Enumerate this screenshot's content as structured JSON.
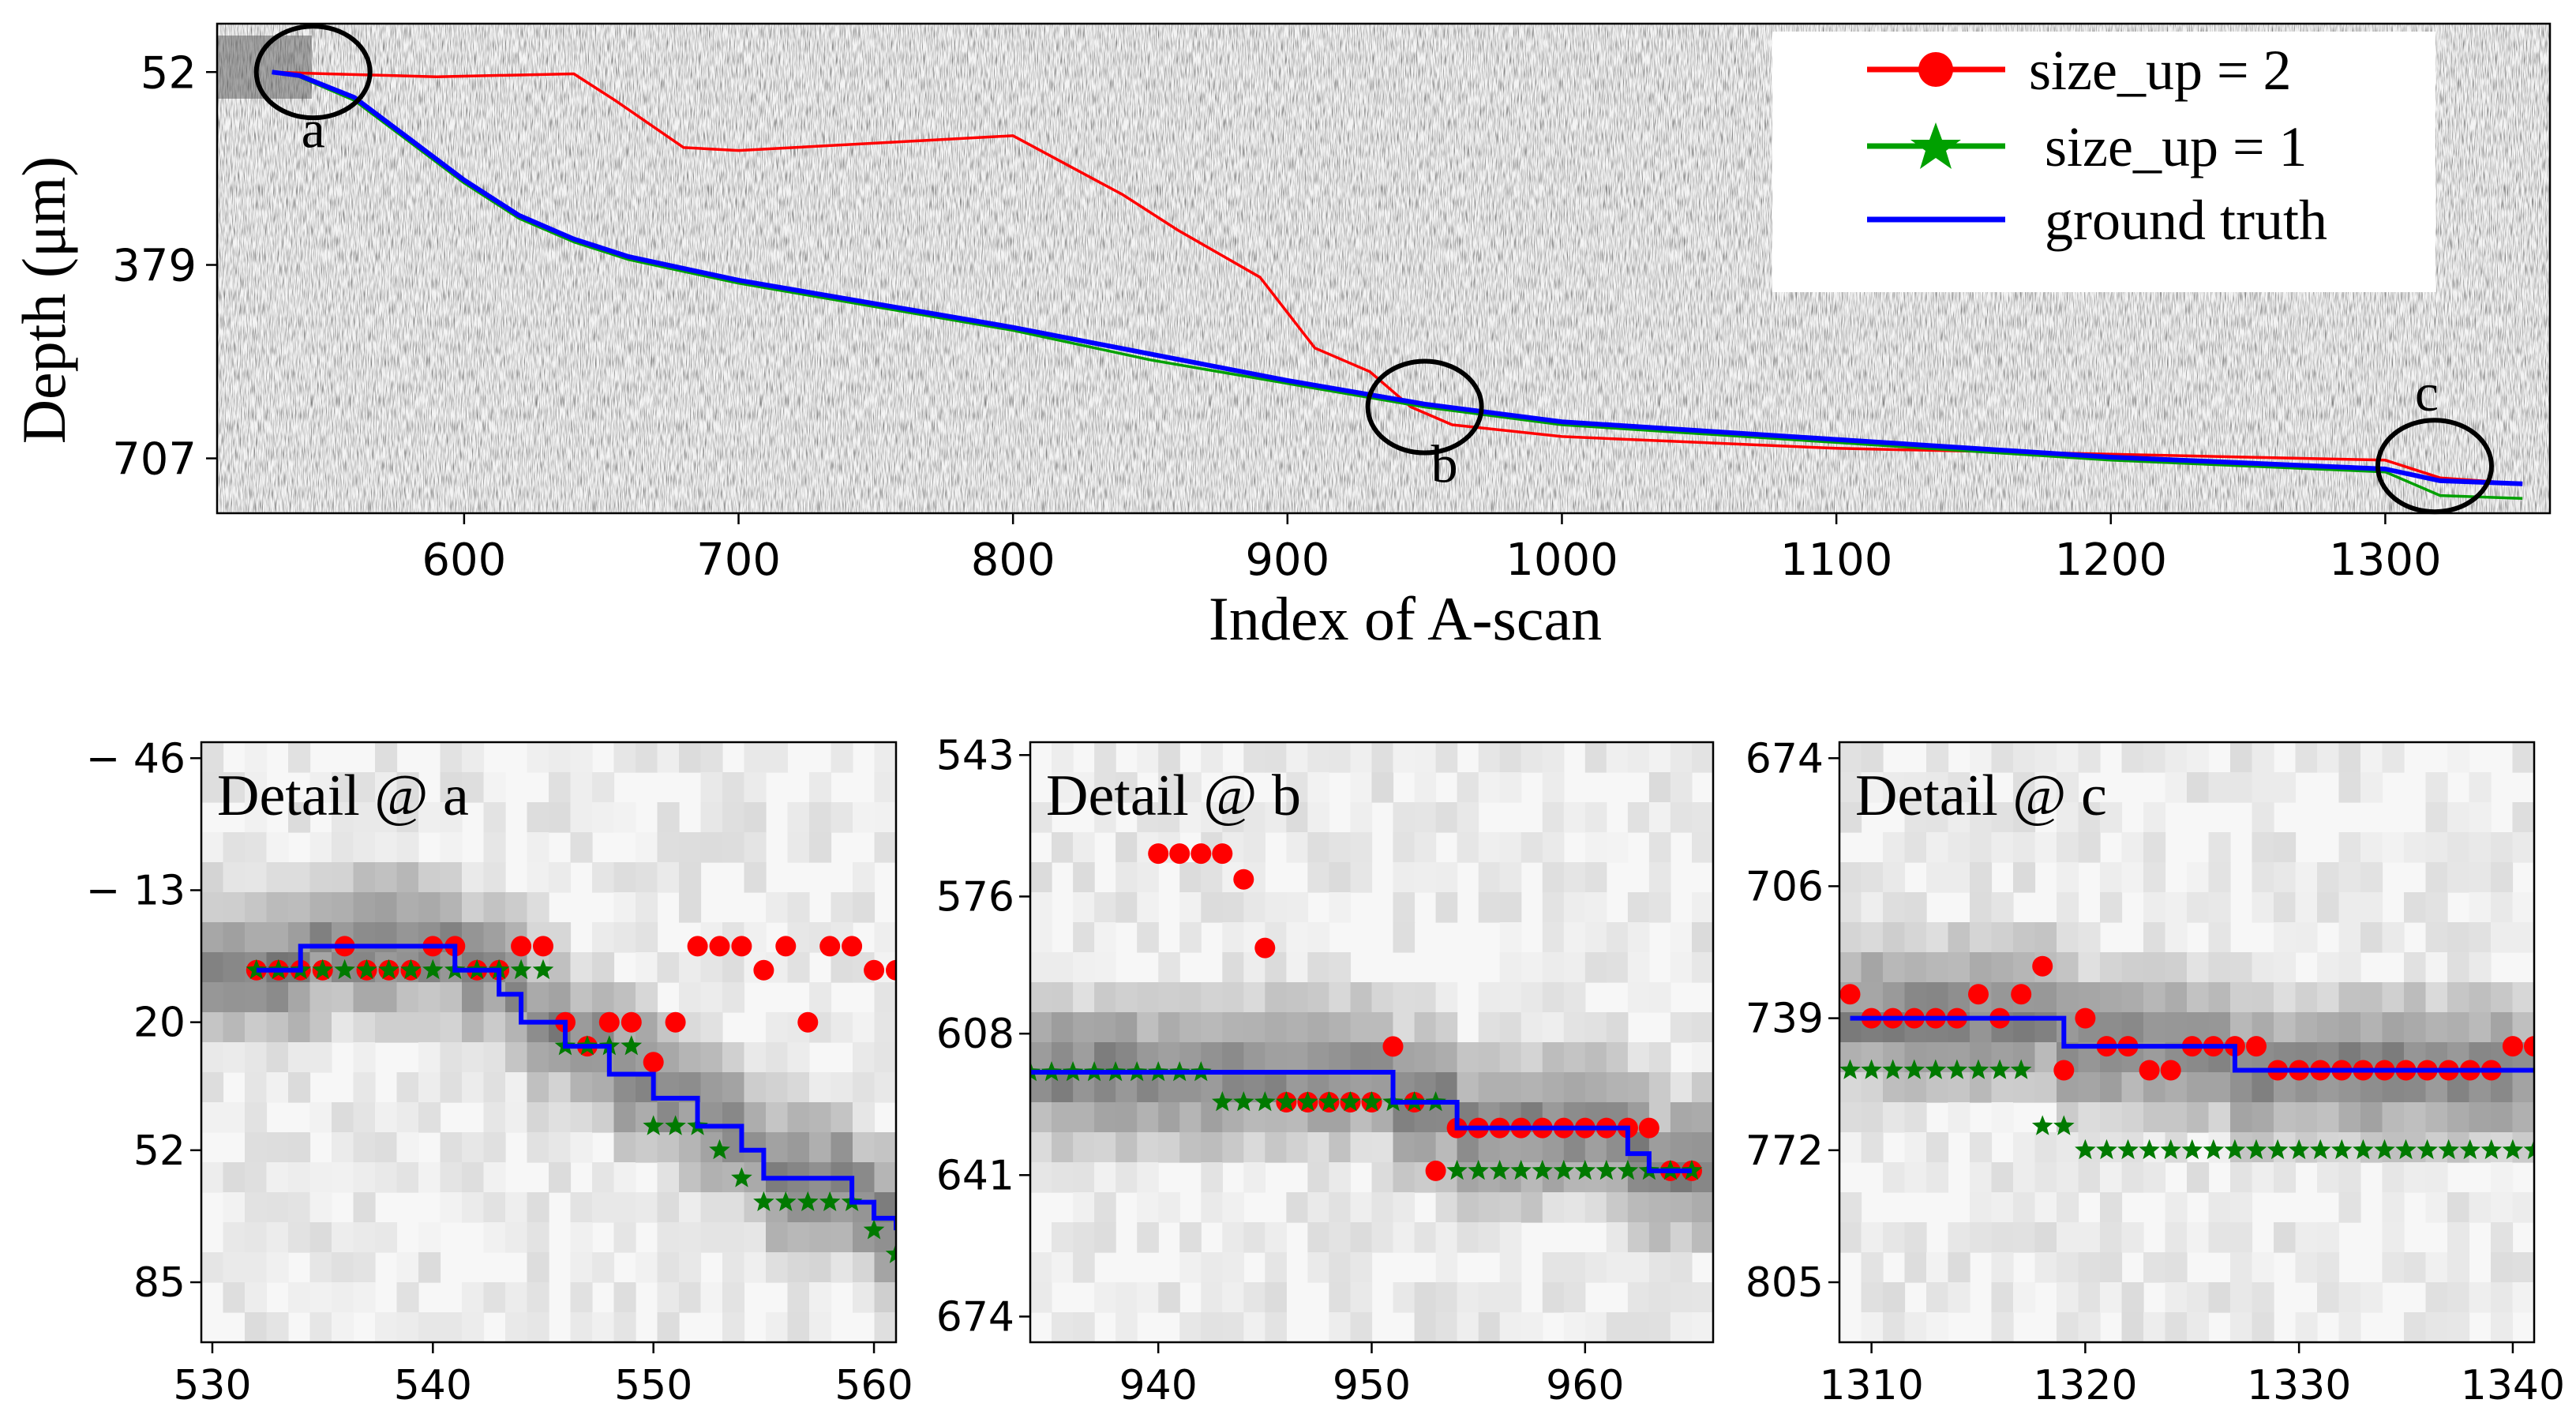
{
  "chart_data": [
    {
      "id": "main",
      "type": "line",
      "title": "",
      "xlabel": "Index of A-scan",
      "ylabel": "Depth (μm)",
      "xlim": [
        510,
        1360
      ],
      "ylim_inverted": [
        -30,
        800
      ],
      "xticks": [
        600,
        700,
        800,
        900,
        1000,
        1100,
        1200,
        1300
      ],
      "yticks": [
        52,
        379,
        707
      ],
      "legend_position": "top-right",
      "series": [
        {
          "name": "size_up = 2",
          "color": "#ff0000",
          "marker": "circle",
          "x": [
            530,
            550,
            590,
            640,
            655,
            680,
            700,
            760,
            800,
            840,
            860,
            890,
            910,
            930,
            945,
            960,
            1000,
            1100,
            1200,
            1300,
            1320,
            1350
          ],
          "y": [
            52,
            55,
            60,
            55,
            100,
            180,
            185,
            170,
            160,
            260,
            320,
            400,
            520,
            560,
            620,
            650,
            670,
            690,
            700,
            710,
            740,
            750
          ]
        },
        {
          "name": "size_up = 1",
          "color": "#00a000",
          "marker": "star",
          "x": [
            530,
            540,
            560,
            580,
            600,
            620,
            640,
            660,
            700,
            750,
            800,
            850,
            900,
            950,
            1000,
            1100,
            1200,
            1300,
            1320,
            1350
          ],
          "y": [
            52,
            60,
            100,
            170,
            240,
            300,
            340,
            370,
            410,
            450,
            490,
            540,
            580,
            620,
            650,
            680,
            710,
            730,
            770,
            775
          ]
        },
        {
          "name": "ground truth",
          "color": "#0000ff",
          "marker": "none",
          "x": [
            530,
            540,
            560,
            580,
            600,
            620,
            640,
            660,
            700,
            750,
            800,
            850,
            900,
            950,
            1000,
            1100,
            1200,
            1300,
            1320,
            1350
          ],
          "y": [
            52,
            58,
            95,
            165,
            235,
            295,
            335,
            365,
            405,
            445,
            485,
            530,
            575,
            615,
            645,
            675,
            705,
            725,
            745,
            750
          ]
        }
      ]
    },
    {
      "id": "detail_a",
      "type": "line",
      "annotation": "Detail @ a",
      "xlim": [
        529.5,
        561
      ],
      "ylim_inverted": [
        -50,
        100
      ],
      "xticks": [
        530,
        540,
        550,
        560
      ],
      "yticks": [
        -46,
        -13,
        20,
        52,
        85
      ],
      "ytick_labels": [
        "− 46",
        "− 13",
        "20",
        "52",
        "85"
      ],
      "series": [
        {
          "name": "size_up = 2",
          "color": "#ff0000",
          "marker": "circle",
          "x": [
            532,
            533,
            534,
            535,
            536,
            537,
            538,
            539,
            540,
            541,
            542,
            543,
            544,
            545,
            546,
            547,
            548,
            549,
            550,
            551,
            552,
            553,
            554,
            555,
            556,
            557,
            558,
            559,
            560,
            561
          ],
          "y": [
            7,
            7,
            7,
            7,
            1,
            7,
            7,
            7,
            1,
            1,
            7,
            7,
            1,
            1,
            20,
            26,
            20,
            20,
            30,
            20,
            1,
            1,
            1,
            7,
            1,
            20,
            1,
            1,
            7,
            7
          ]
        },
        {
          "name": "size_up = 1",
          "color": "#007a00",
          "marker": "star",
          "x": [
            532,
            533,
            534,
            535,
            536,
            537,
            538,
            539,
            540,
            541,
            542,
            543,
            544,
            545,
            546,
            547,
            548,
            549,
            550,
            551,
            552,
            553,
            554,
            555,
            556,
            557,
            558,
            559,
            560,
            561
          ],
          "y": [
            7,
            7,
            7,
            7,
            7,
            7,
            7,
            7,
            7,
            7,
            7,
            7,
            7,
            7,
            26,
            26,
            26,
            26,
            46,
            46,
            46,
            52,
            59,
            65,
            65,
            65,
            65,
            65,
            72,
            78
          ]
        },
        {
          "name": "ground truth",
          "color": "#0000ff",
          "marker": "none",
          "x": [
            532,
            533,
            534,
            535,
            536,
            537,
            538,
            539,
            540,
            541,
            542,
            543,
            544,
            545,
            546,
            547,
            548,
            549,
            550,
            551,
            552,
            553,
            554,
            555,
            556,
            557,
            558,
            559,
            560,
            561
          ],
          "y": [
            7,
            7,
            1,
            1,
            1,
            1,
            1,
            1,
            1,
            7,
            7,
            13,
            20,
            20,
            26,
            26,
            33,
            33,
            39,
            39,
            46,
            46,
            52,
            59,
            59,
            59,
            59,
            65,
            69,
            72
          ]
        }
      ]
    },
    {
      "id": "detail_b",
      "type": "line",
      "annotation": "Detail @ b",
      "xlim": [
        934,
        966
      ],
      "ylim_inverted": [
        540,
        680
      ],
      "xticks": [
        940,
        950,
        960
      ],
      "yticks": [
        543,
        576,
        608,
        641,
        674
      ],
      "ytick_labels": [
        "543",
        "576",
        "608",
        "641",
        "674"
      ],
      "series": [
        {
          "name": "size_up = 2",
          "color": "#ff0000",
          "marker": "circle",
          "x": [
            940,
            941,
            942,
            943,
            944,
            945,
            946,
            947,
            948,
            949,
            950,
            951,
            952,
            953,
            954,
            955,
            956,
            957,
            958,
            959,
            960,
            961,
            962,
            963,
            964,
            965
          ],
          "y": [
            566,
            566,
            566,
            566,
            572,
            588,
            624,
            624,
            624,
            624,
            624,
            611,
            624,
            640,
            630,
            630,
            630,
            630,
            630,
            630,
            630,
            630,
            630,
            630,
            640,
            640
          ]
        },
        {
          "name": "size_up = 1",
          "color": "#007a00",
          "marker": "star",
          "x": [
            934,
            935,
            936,
            937,
            938,
            939,
            940,
            941,
            942,
            943,
            944,
            945,
            946,
            947,
            948,
            949,
            950,
            951,
            952,
            953,
            954,
            955,
            956,
            957,
            958,
            959,
            960,
            961,
            962,
            963,
            964,
            965
          ],
          "y": [
            617,
            617,
            617,
            617,
            617,
            617,
            617,
            617,
            617,
            624,
            624,
            624,
            624,
            624,
            624,
            624,
            624,
            624,
            624,
            624,
            640,
            640,
            640,
            640,
            640,
            640,
            640,
            640,
            640,
            640,
            640,
            640
          ]
        },
        {
          "name": "ground truth",
          "color": "#0000ff",
          "marker": "none",
          "x": [
            934,
            944,
            946,
            947,
            948,
            949,
            950,
            951,
            952,
            953,
            954,
            955,
            956,
            957,
            958,
            959,
            960,
            961,
            962,
            963,
            964,
            965
          ],
          "y": [
            617,
            617,
            617,
            617,
            617,
            617,
            617,
            624,
            624,
            624,
            630,
            630,
            630,
            630,
            630,
            630,
            630,
            630,
            636,
            640,
            640,
            640
          ]
        }
      ]
    },
    {
      "id": "detail_c",
      "type": "line",
      "annotation": "Detail @ c",
      "xlim": [
        1308.5,
        1341
      ],
      "ylim_inverted": [
        670,
        820
      ],
      "xticks": [
        1310,
        1320,
        1330,
        1340
      ],
      "yticks": [
        674,
        706,
        739,
        772,
        805
      ],
      "ytick_labels": [
        "674",
        "706",
        "739",
        "772",
        "805"
      ],
      "series": [
        {
          "name": "size_up = 2",
          "color": "#ff0000",
          "marker": "circle",
          "x": [
            1309,
            1310,
            1311,
            1312,
            1313,
            1314,
            1315,
            1316,
            1317,
            1318,
            1319,
            1320,
            1321,
            1322,
            1323,
            1324,
            1325,
            1326,
            1327,
            1328,
            1329,
            1330,
            1331,
            1332,
            1333,
            1334,
            1335,
            1336,
            1337,
            1338,
            1339,
            1340,
            1341
          ],
          "y": [
            733,
            739,
            739,
            739,
            739,
            739,
            733,
            739,
            733,
            726,
            752,
            739,
            746,
            746,
            752,
            752,
            746,
            746,
            746,
            746,
            752,
            752,
            752,
            752,
            752,
            752,
            752,
            752,
            752,
            752,
            752,
            746,
            746
          ]
        },
        {
          "name": "size_up = 1",
          "color": "#007a00",
          "marker": "star",
          "x": [
            1309,
            1310,
            1311,
            1312,
            1313,
            1314,
            1315,
            1316,
            1317,
            1318,
            1319,
            1320,
            1321,
            1322,
            1323,
            1324,
            1325,
            1326,
            1327,
            1328,
            1329,
            1330,
            1331,
            1332,
            1333,
            1334,
            1335,
            1336,
            1337,
            1338,
            1339,
            1340,
            1341
          ],
          "y": [
            752,
            752,
            752,
            752,
            752,
            752,
            752,
            752,
            752,
            766,
            766,
            772,
            772,
            772,
            772,
            772,
            772,
            772,
            772,
            772,
            772,
            772,
            772,
            772,
            772,
            772,
            772,
            772,
            772,
            772,
            772,
            772,
            772
          ]
        },
        {
          "name": "ground truth",
          "color": "#0000ff",
          "marker": "none",
          "x": [
            1309,
            1317,
            1318,
            1319,
            1320,
            1321,
            1322,
            1323,
            1324,
            1325,
            1326,
            1327,
            1328,
            1329,
            1330,
            1331,
            1332,
            1333,
            1334,
            1335,
            1336,
            1337,
            1338,
            1339,
            1340,
            1341
          ],
          "y": [
            739,
            739,
            739,
            746,
            746,
            746,
            746,
            746,
            746,
            746,
            746,
            752,
            752,
            752,
            752,
            752,
            752,
            752,
            752,
            752,
            752,
            752,
            752,
            752,
            752,
            752
          ]
        }
      ]
    }
  ],
  "circles": [
    {
      "label": "a",
      "x": 545,
      "y": 52
    },
    {
      "label": "b",
      "x": 950,
      "y": 620
    },
    {
      "label": "c",
      "x": 1318,
      "y": 720
    }
  ],
  "legend": {
    "entries": [
      "size_up = 2",
      "size_up = 1",
      "ground truth"
    ]
  }
}
